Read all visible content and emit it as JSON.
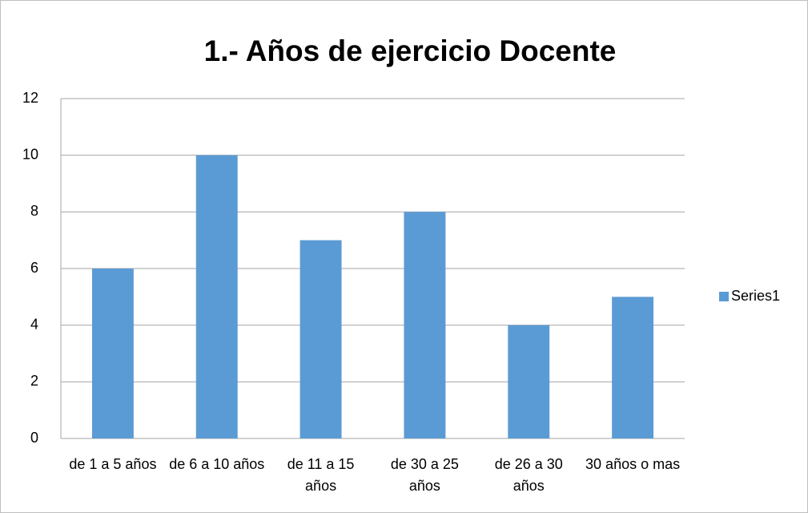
{
  "chart_data": {
    "type": "bar",
    "title": "1.- Años de ejercicio Docente",
    "categories": [
      "de 1 a 5 años",
      "de 6 a 10 años",
      "de 11 a 15 años",
      "de 30 a 25 años",
      "de 26 a 30 años",
      "30 años o mas"
    ],
    "series": [
      {
        "name": "Series1",
        "color": "#5b9bd5",
        "values": [
          6,
          10,
          7,
          8,
          4,
          5
        ]
      }
    ],
    "ylim": [
      0,
      12
    ],
    "yticks": [
      0,
      2,
      4,
      6,
      8,
      10,
      12
    ],
    "grid": true,
    "legend": "right"
  }
}
